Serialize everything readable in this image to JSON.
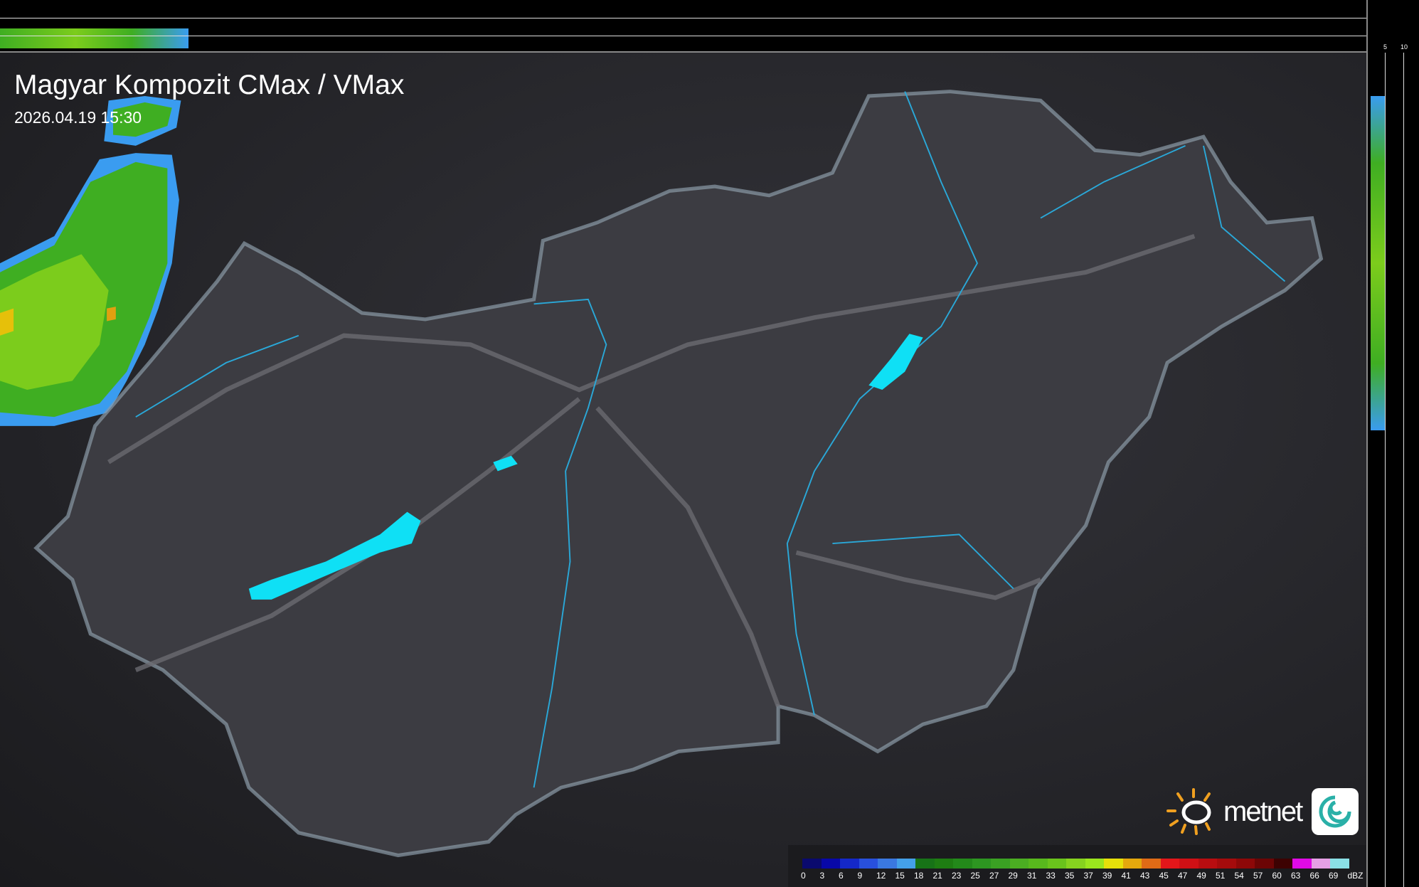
{
  "title": "Magyar Kompozit CMax / VMax",
  "timestamp": "2026.04.19 15:30",
  "profile_axes": {
    "top_ticks": [
      "10",
      "5"
    ],
    "right_ticks": [
      "5",
      "10"
    ]
  },
  "legend": {
    "unit": "dBZ",
    "labels": [
      "0",
      "3",
      "6",
      "9",
      "12",
      "15",
      "18",
      "21",
      "23",
      "25",
      "27",
      "29",
      "31",
      "33",
      "35",
      "37",
      "39",
      "41",
      "43",
      "45",
      "47",
      "49",
      "51",
      "54",
      "57",
      "60",
      "63",
      "66",
      "69"
    ],
    "colors": [
      "#0a0a6e",
      "#0808a8",
      "#1428c8",
      "#2850dc",
      "#3a78e0",
      "#44a0e8",
      "#177317",
      "#1e7d12",
      "#23891a",
      "#2d9621",
      "#3aa123",
      "#4bae22",
      "#58b81d",
      "#6ac31c",
      "#86d21f",
      "#9be51e",
      "#e6e00a",
      "#e4a80d",
      "#e06b16",
      "#e3161a",
      "#cf1015",
      "#b80d10",
      "#a50b0c",
      "#8d0808",
      "#6c0505",
      "#3d0202",
      "#e10ae6",
      "#e6a0e6",
      "#8ae0e6"
    ]
  },
  "logo": {
    "text": "metnet"
  },
  "colors": {
    "country_fill": "#3c3c42",
    "border": "#8a9aa6",
    "rivers": "#2aa8d8",
    "lakes": "#0fe0f5",
    "roads": "#6a6a70"
  }
}
